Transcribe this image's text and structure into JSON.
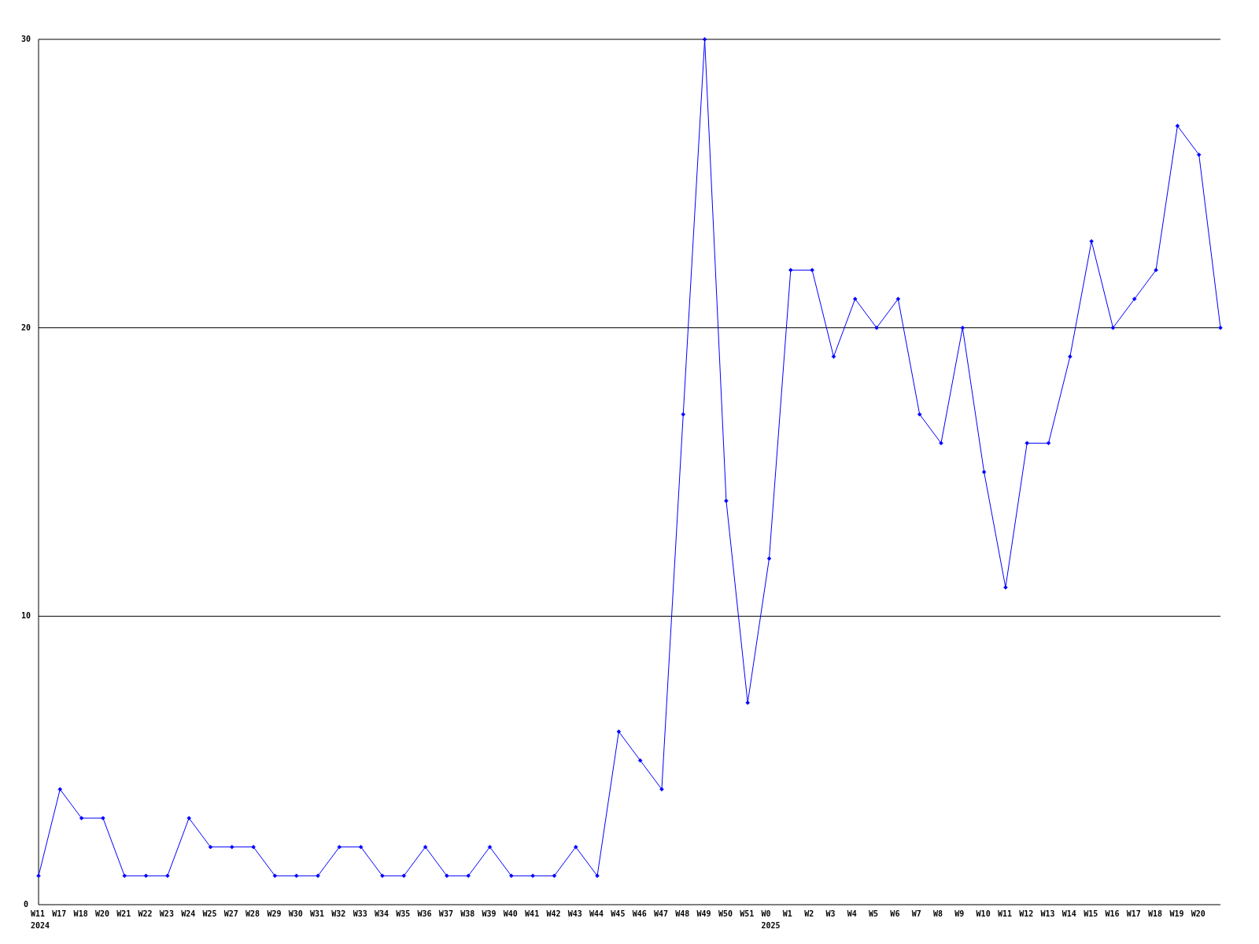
{
  "chart_data": {
    "type": "line",
    "categories": [
      "W11\n2024",
      "W17",
      "W18",
      "W20",
      "W21",
      "W22",
      "W23",
      "W24",
      "W25",
      "W27",
      "W28",
      "W29",
      "W30",
      "W31",
      "W32",
      "W33",
      "W34",
      "W35",
      "W36",
      "W37",
      "W38",
      "W39",
      "W40",
      "W41",
      "W42",
      "W43",
      "W44",
      "W45",
      "W46",
      "W47",
      "W48",
      "W49",
      "W50",
      "W51",
      "W0\n2025",
      "W1",
      "W2",
      "W3",
      "W4",
      "W5",
      "W6",
      "W7",
      "W8",
      "W9",
      "W10",
      "W11",
      "W12",
      "W13",
      "W14",
      "W15",
      "W16",
      "W17",
      "W18",
      "W19",
      "W20",
      null
    ],
    "series": [
      {
        "color": "#0000ff",
        "values": [
          1,
          4,
          3,
          3,
          1,
          1,
          1,
          3,
          2,
          2,
          2,
          1,
          1,
          1,
          2,
          2,
          1,
          1,
          2,
          1,
          1,
          2,
          1,
          1,
          1,
          2,
          1,
          6,
          5,
          4,
          17,
          30,
          14,
          7,
          12,
          22,
          22,
          19,
          21,
          20,
          21,
          17,
          16,
          20,
          15,
          11,
          16,
          16,
          19,
          23,
          20,
          21,
          22,
          27,
          26,
          20
        ]
      }
    ],
    "ylim": [
      0,
      30
    ],
    "yticks": [
      0,
      10,
      20,
      30
    ],
    "grid": "y",
    "marker": "diamond",
    "line_style": "solid"
  }
}
